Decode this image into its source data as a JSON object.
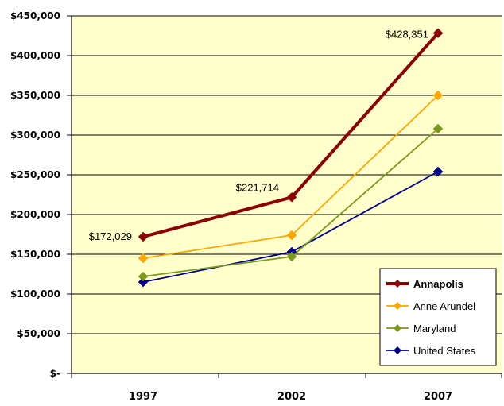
{
  "chart_data": {
    "type": "line",
    "categories": [
      "1997",
      "2002",
      "2007"
    ],
    "ylim": [
      0,
      450000
    ],
    "y_ticks": [
      {
        "value": 0,
        "label": "$-"
      },
      {
        "value": 50000,
        "label": "$50,000"
      },
      {
        "value": 100000,
        "label": "$100,000"
      },
      {
        "value": 150000,
        "label": "$150,000"
      },
      {
        "value": 200000,
        "label": "$200,000"
      },
      {
        "value": 250000,
        "label": "$250,000"
      },
      {
        "value": 300000,
        "label": "$300,000"
      },
      {
        "value": 350000,
        "label": "$350,000"
      },
      {
        "value": 400000,
        "label": "$400,000"
      },
      {
        "value": 450000,
        "label": "$450,000"
      }
    ],
    "grid": true,
    "plot_background": "#FFFFCC",
    "legend_position": "bottom-right",
    "series": [
      {
        "name": "Annapolis",
        "color": "#8B0000",
        "values": [
          172029,
          221714,
          428351
        ],
        "bold": true
      },
      {
        "name": "Anne Arundel",
        "color": "#FFA500",
        "values": [
          145000,
          174000,
          350000
        ]
      },
      {
        "name": "Maryland",
        "color": "#7B9A1E",
        "values": [
          122000,
          147000,
          308000
        ]
      },
      {
        "name": "United States",
        "color": "#00008B",
        "values": [
          115000,
          153000,
          254000
        ]
      }
    ],
    "annotations": [
      {
        "series": 0,
        "point": 0,
        "text": "$172,029"
      },
      {
        "series": 0,
        "point": 1,
        "text": "$221,714"
      },
      {
        "series": 0,
        "point": 2,
        "text": "$428,351"
      }
    ]
  }
}
